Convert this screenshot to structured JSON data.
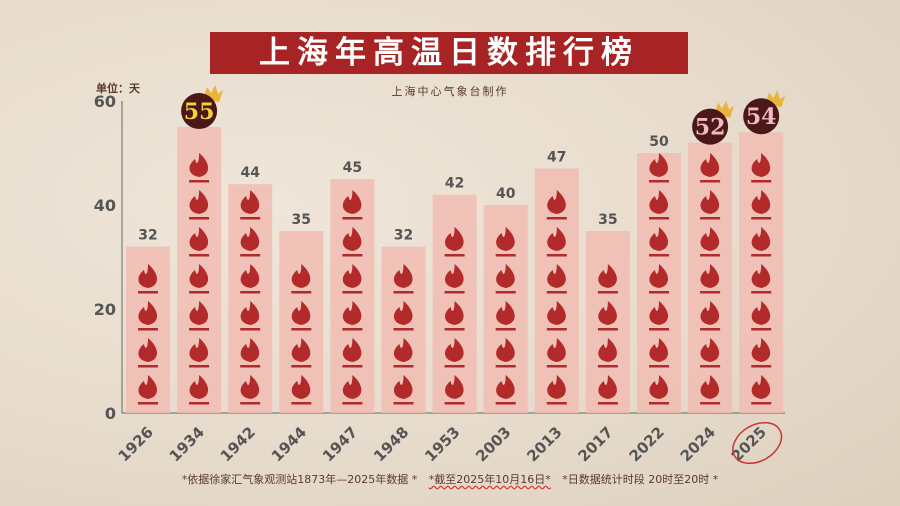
{
  "title": "上海年高温日数排行榜",
  "subtitle": "上海中心气象台制作",
  "unit_label": "单位：天",
  "footnotes": [
    "*依据徐家汇气象观测站1873年—2025年数据 *",
    "*截至2025年10月16日*",
    "*日数据统计时段 20时至20时 *"
  ],
  "colors": {
    "title_bg": "#a82424",
    "bar": "#f1bcb3",
    "flame": "#b22a2a",
    "badge": "#4a1818",
    "badge_gold": "#f5d23a",
    "badge_pink": "#f3b9c0",
    "axis": "#666666"
  },
  "icons": {
    "bar_symbol": "flame-icon",
    "badge": "crown-icon"
  },
  "chart_data": {
    "type": "bar",
    "title": "上海年高温日数排行榜",
    "ylabel": "单位：天",
    "ylim": [
      0,
      60
    ],
    "yticks": [
      0,
      20,
      40,
      60
    ],
    "categories": [
      "1926",
      "1934",
      "1942",
      "1944",
      "1947",
      "1948",
      "1953",
      "2003",
      "2013",
      "2017",
      "2022",
      "2024",
      "2025"
    ],
    "values": [
      32,
      55,
      44,
      35,
      45,
      32,
      42,
      40,
      47,
      35,
      50,
      52,
      54
    ],
    "highlighted": {
      "1934": "gold",
      "2024": "pink",
      "2025": "pink"
    },
    "circled_category": "2025",
    "grid": false
  }
}
